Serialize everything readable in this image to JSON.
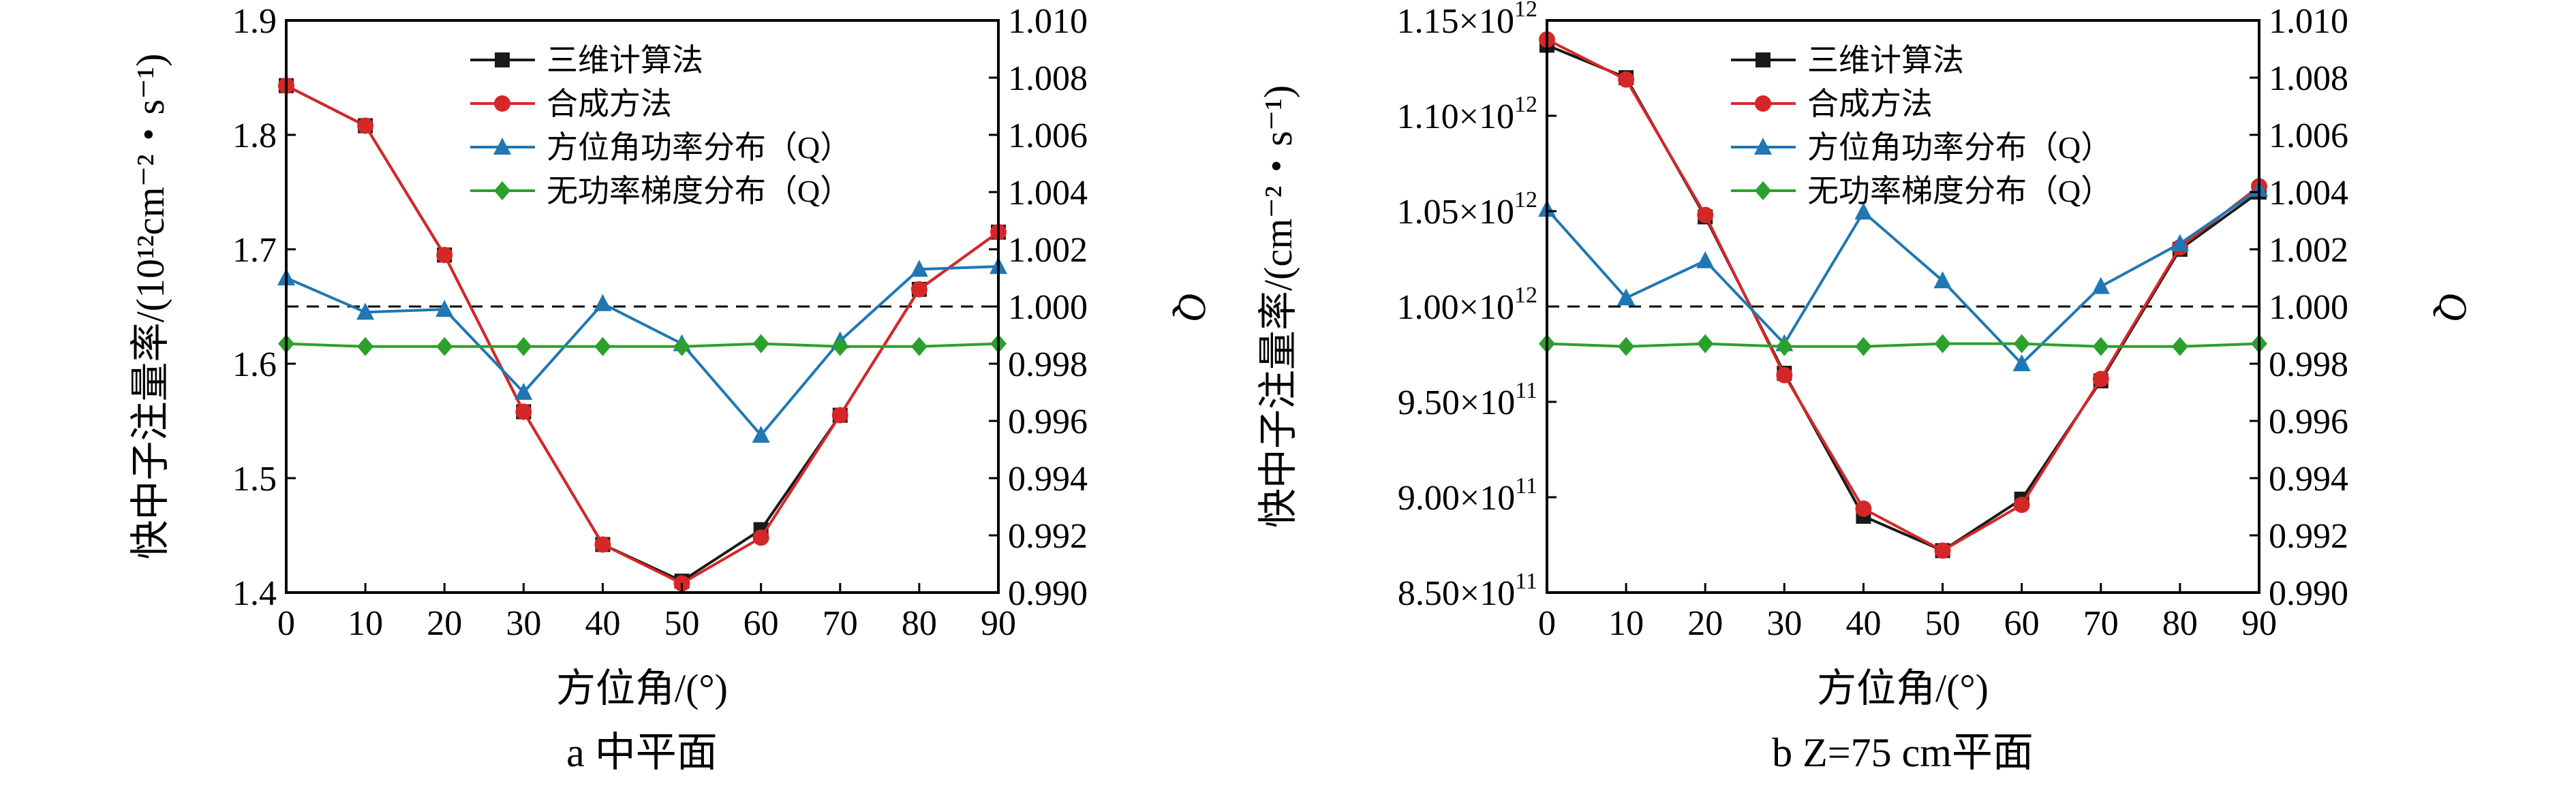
{
  "chart_data": [
    {
      "type": "line",
      "caption": "a  中平面",
      "xlabel": "方位角/(°)",
      "ylabel": "快中子注量率/(10¹²cm⁻²・s⁻¹)",
      "ylabel_right": "Q",
      "x": [
        0,
        10,
        20,
        30,
        40,
        50,
        60,
        70,
        80,
        90
      ],
      "x_ticks": [
        "0",
        "10",
        "20",
        "30",
        "40",
        "50",
        "60",
        "70",
        "80",
        "90"
      ],
      "xlim": [
        0,
        90
      ],
      "ylim": [
        1.4,
        1.9
      ],
      "y_ticks": [
        "1.4",
        "1.5",
        "1.6",
        "1.7",
        "1.8",
        "1.9"
      ],
      "y_tick_values": [
        1.4,
        1.5,
        1.6,
        1.7,
        1.8,
        1.9
      ],
      "ylim_right": [
        0.99,
        1.01
      ],
      "y_ticks_right": [
        "0.990",
        "0.992",
        "0.994",
        "0.996",
        "0.998",
        "1.000",
        "1.002",
        "1.004",
        "1.006",
        "1.008",
        "1.010"
      ],
      "y_tick_values_right": [
        0.99,
        0.992,
        0.994,
        0.996,
        0.998,
        1.0,
        1.002,
        1.004,
        1.006,
        1.008,
        1.01
      ],
      "reference_line_right": 1.0,
      "legend_position": "top-center",
      "series": [
        {
          "name": "三维计算法",
          "axis": "left",
          "marker": "square",
          "color": "#1a1a1a",
          "values": [
            1.843,
            1.808,
            1.695,
            1.558,
            1.442,
            1.41,
            1.455,
            1.555,
            1.665,
            1.715
          ]
        },
        {
          "name": "合成方法",
          "axis": "left",
          "marker": "circle",
          "color": "#d62728",
          "values": [
            1.843,
            1.808,
            1.695,
            1.558,
            1.442,
            1.408,
            1.448,
            1.555,
            1.665,
            1.715
          ]
        },
        {
          "name": "方位角功率分布（Q）",
          "axis": "right",
          "marker": "triangle",
          "color": "#1f77b4",
          "values": [
            1.001,
            0.9998,
            0.9999,
            0.997,
            1.0001,
            0.9987,
            0.9955,
            0.9988,
            1.0013,
            1.0014
          ]
        },
        {
          "name": "无功率梯度分布（Q）",
          "axis": "right",
          "marker": "diamond",
          "color": "#2ca02c",
          "values": [
            0.9987,
            0.9986,
            0.9986,
            0.9986,
            0.9986,
            0.9986,
            0.9987,
            0.9986,
            0.9986,
            0.9987
          ]
        }
      ]
    },
    {
      "type": "line",
      "caption": "b  Z=75 cm平面",
      "xlabel": "方位角/(°)",
      "ylabel": "快中子注量率/(cm⁻²・s⁻¹)",
      "ylabel_right": "Q",
      "x": [
        0,
        10,
        20,
        30,
        40,
        50,
        60,
        70,
        80,
        90
      ],
      "x_ticks": [
        "0",
        "10",
        "20",
        "30",
        "40",
        "50",
        "60",
        "70",
        "80",
        "90"
      ],
      "xlim": [
        0,
        90
      ],
      "ylim": [
        850000000000.0,
        1150000000000.0
      ],
      "y_ticks": [
        "8.50×10¹¹",
        "9.00×10¹¹",
        "9.50×10¹¹",
        "1.00×10¹²",
        "1.05×10¹²",
        "1.10×10¹²",
        "1.15×10¹²"
      ],
      "y_tick_values": [
        850000000000.0,
        900000000000.0,
        950000000000.0,
        1000000000000.0,
        1050000000000.0,
        1100000000000.0,
        1150000000000.0
      ],
      "ylim_right": [
        0.99,
        1.01
      ],
      "y_ticks_right": [
        "0.990",
        "0.992",
        "0.994",
        "0.996",
        "0.998",
        "1.000",
        "1.002",
        "1.004",
        "1.006",
        "1.008",
        "1.010"
      ],
      "y_tick_values_right": [
        0.99,
        0.992,
        0.994,
        0.996,
        0.998,
        1.0,
        1.002,
        1.004,
        1.006,
        1.008,
        1.01
      ],
      "reference_line_right": 1.0,
      "legend_position": "top-center",
      "series": [
        {
          "name": "三维计算法",
          "axis": "left",
          "marker": "square",
          "color": "#1a1a1a",
          "values": [
            1137000000000.0,
            1120000000000.0,
            1047000000000.0,
            965000000000.0,
            890000000000.0,
            872000000000.0,
            899000000000.0,
            961000000000.0,
            1030000000000.0,
            1060000000000.0
          ]
        },
        {
          "name": "合成方法",
          "axis": "left",
          "marker": "circle",
          "color": "#d62728",
          "values": [
            1140000000000.0,
            1119000000000.0,
            1048000000000.0,
            964000000000.0,
            894000000000.0,
            872000000000.0,
            896000000000.0,
            962000000000.0,
            1031000000000.0,
            1063000000000.0
          ]
        },
        {
          "name": "方位角功率分布（Q）",
          "axis": "right",
          "marker": "triangle",
          "color": "#1f77b4",
          "values": [
            1.0034,
            1.0003,
            1.0016,
            0.9987,
            1.0033,
            1.0009,
            0.998,
            1.0007,
            1.0022,
            1.0041
          ]
        },
        {
          "name": "无功率梯度分布（Q）",
          "axis": "right",
          "marker": "diamond",
          "color": "#2ca02c",
          "values": [
            0.9987,
            0.9986,
            0.9987,
            0.9986,
            0.9986,
            0.9987,
            0.9987,
            0.9986,
            0.9986,
            0.9987
          ]
        }
      ]
    }
  ]
}
